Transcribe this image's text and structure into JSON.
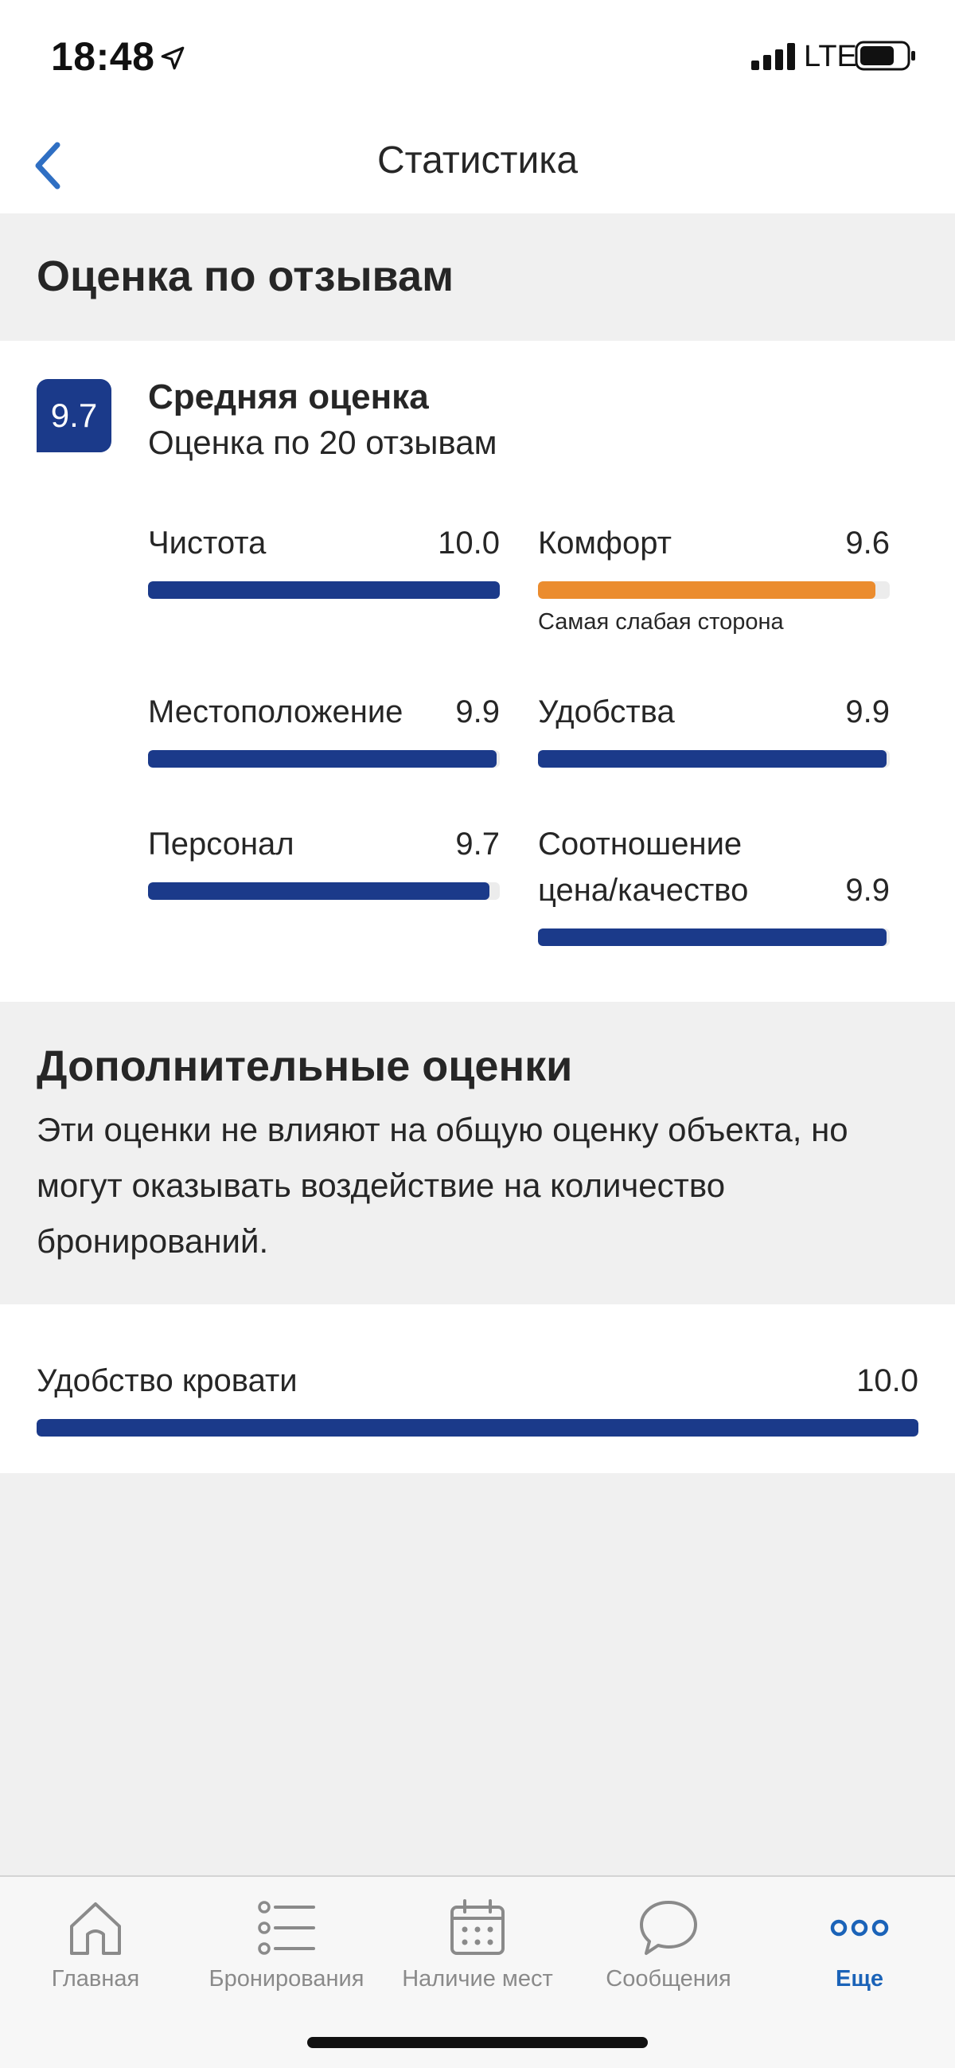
{
  "status_bar": {
    "time": "18:48",
    "network": "LTE"
  },
  "nav": {
    "title": "Статистика"
  },
  "reviews": {
    "heading": "Оценка по отзывам",
    "score": "9.7",
    "title": "Средняя оценка",
    "subtitle": "Оценка по 20 отзывам",
    "metrics": [
      {
        "label": "Чистота",
        "value": "10.0",
        "fill": 1.0,
        "color": "#1b3a8a"
      },
      {
        "label": "Комфорт",
        "value": "9.6",
        "fill": 0.96,
        "color": "#eb8c2e",
        "note": "Самая слабая сторона"
      },
      {
        "label": "Местоположение",
        "value": "9.9",
        "fill": 0.99,
        "color": "#1b3a8a"
      },
      {
        "label": "Удобства",
        "value": "9.9",
        "fill": 0.99,
        "color": "#1b3a8a"
      },
      {
        "label": "Персонал",
        "value": "9.7",
        "fill": 0.97,
        "color": "#1b3a8a"
      },
      {
        "label_line1": "Соотношение",
        "label_line2": "цена/качество",
        "value": "9.9",
        "fill": 0.99,
        "color": "#1b3a8a"
      }
    ]
  },
  "additional": {
    "heading": "Дополнительные оценки",
    "description": "Эти оценки не влияют на общую оценку объекта, но могут оказывать воздействие на количество бронирований.",
    "items": [
      {
        "label": "Удобство кровати",
        "value": "10.0",
        "fill": 1.0,
        "color": "#1b3a8a"
      }
    ]
  },
  "tabbar": {
    "items": [
      {
        "label": "Главная",
        "icon": "home-icon"
      },
      {
        "label": "Бронирования",
        "icon": "list-icon"
      },
      {
        "label": "Наличие мест",
        "icon": "calendar-icon"
      },
      {
        "label": "Сообщения",
        "icon": "chat-bubble-icon"
      },
      {
        "label": "Еще",
        "icon": "more-dots-icon",
        "active": true
      }
    ]
  },
  "colors": {
    "brand": "#1b3a8a",
    "accent": "#eb8c2e",
    "link": "#1b63b8"
  }
}
